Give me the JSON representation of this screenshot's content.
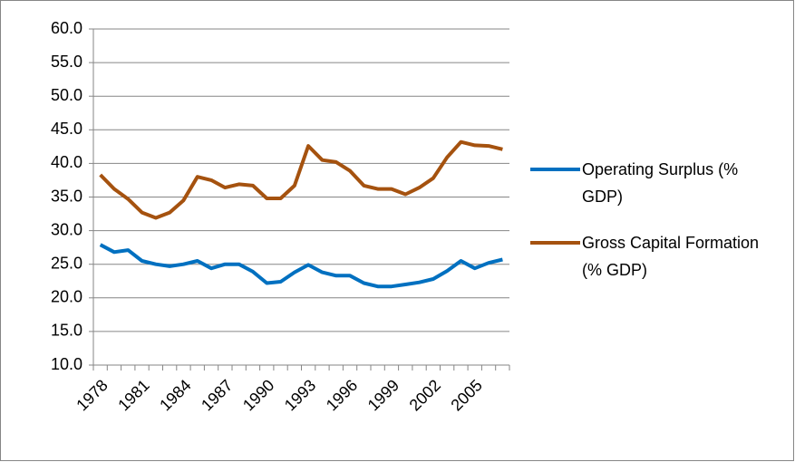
{
  "chart_data": {
    "type": "line",
    "categories": [
      "1978",
      null,
      null,
      "1981",
      null,
      null,
      "1984",
      null,
      null,
      "1987",
      null,
      null,
      "1990",
      null,
      null,
      "1993",
      null,
      null,
      "1996",
      null,
      null,
      "1999",
      null,
      null,
      "2002",
      null,
      null,
      "2005",
      null,
      null
    ],
    "series": [
      {
        "name": "Operating Surplus (% GDP)",
        "color": "#0070c0",
        "values": [
          27.9,
          26.8,
          27.1,
          25.5,
          25.0,
          24.7,
          25.0,
          25.5,
          24.4,
          25.0,
          25.0,
          23.9,
          22.2,
          22.4,
          23.8,
          24.9,
          23.8,
          23.3,
          23.3,
          22.2,
          21.7,
          21.7,
          22.0,
          22.3,
          22.8,
          24.0,
          25.5,
          24.4,
          25.2,
          25.7
        ]
      },
      {
        "name": "Gross Capital Formation (% GDP)",
        "color": "#a5520f",
        "values": [
          38.3,
          36.2,
          34.7,
          32.7,
          31.9,
          32.7,
          34.5,
          38.0,
          37.5,
          36.4,
          36.9,
          36.7,
          34.8,
          34.8,
          36.7,
          42.6,
          40.5,
          40.2,
          38.9,
          36.7,
          36.2,
          36.2,
          35.4,
          36.4,
          37.8,
          40.9,
          43.2,
          42.7,
          42.6,
          42.1
        ]
      }
    ],
    "ylim": [
      10,
      60
    ],
    "yticks": [
      {
        "value": 10,
        "label": "10.0"
      },
      {
        "value": 15,
        "label": "15.0"
      },
      {
        "value": 20,
        "label": "20.0"
      },
      {
        "value": 25,
        "label": "25.0"
      },
      {
        "value": 30,
        "label": "30.0"
      },
      {
        "value": 35,
        "label": "35.0"
      },
      {
        "value": 40,
        "label": "40.0"
      },
      {
        "value": 45,
        "label": "45.0"
      },
      {
        "value": 50,
        "label": "50.0"
      },
      {
        "value": 55,
        "label": "55.0"
      },
      {
        "value": 60,
        "label": "60.0"
      }
    ],
    "grid": true
  }
}
